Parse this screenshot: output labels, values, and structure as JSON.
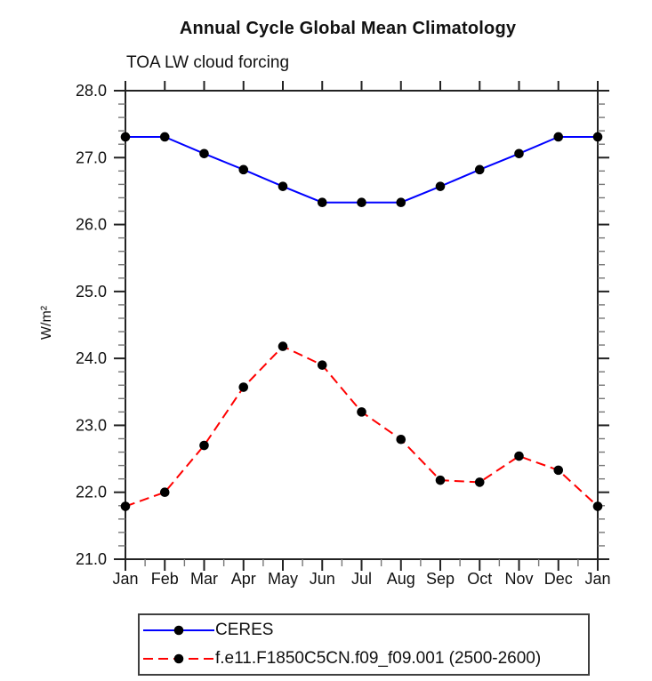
{
  "chart_data": {
    "type": "line",
    "title": "Annual Cycle Global Mean Climatology",
    "subtitle": "TOA LW cloud forcing",
    "ylabel": "W/m²",
    "x_categories": [
      "Jan",
      "Feb",
      "Mar",
      "Apr",
      "May",
      "Jun",
      "Jul",
      "Aug",
      "Sep",
      "Oct",
      "Nov",
      "Dec",
      "Jan"
    ],
    "ylim": [
      21.0,
      28.0
    ],
    "y_major_step": 1.0,
    "y_minor_step": 0.2,
    "grid": false,
    "legend_position": "bottom",
    "axis_color": "#222222",
    "minor_tick_color": "#777777",
    "series": [
      {
        "name": "CERES",
        "color": "#0000ff",
        "line_style": "solid",
        "marker": "circle",
        "marker_color": "#000000",
        "values": [
          27.31,
          27.31,
          27.06,
          26.82,
          26.57,
          26.33,
          26.33,
          26.33,
          26.57,
          26.82,
          27.06,
          27.31,
          27.31
        ]
      },
      {
        "name": "f.e11.F1850C5CN.f09_f09.001 (2500-2600)",
        "color": "#ff0000",
        "line_style": "dashed",
        "marker": "circle",
        "marker_color": "#000000",
        "values": [
          21.79,
          22.0,
          22.7,
          23.57,
          24.18,
          23.9,
          23.2,
          22.79,
          22.18,
          22.15,
          22.54,
          22.33,
          21.79
        ]
      }
    ]
  }
}
